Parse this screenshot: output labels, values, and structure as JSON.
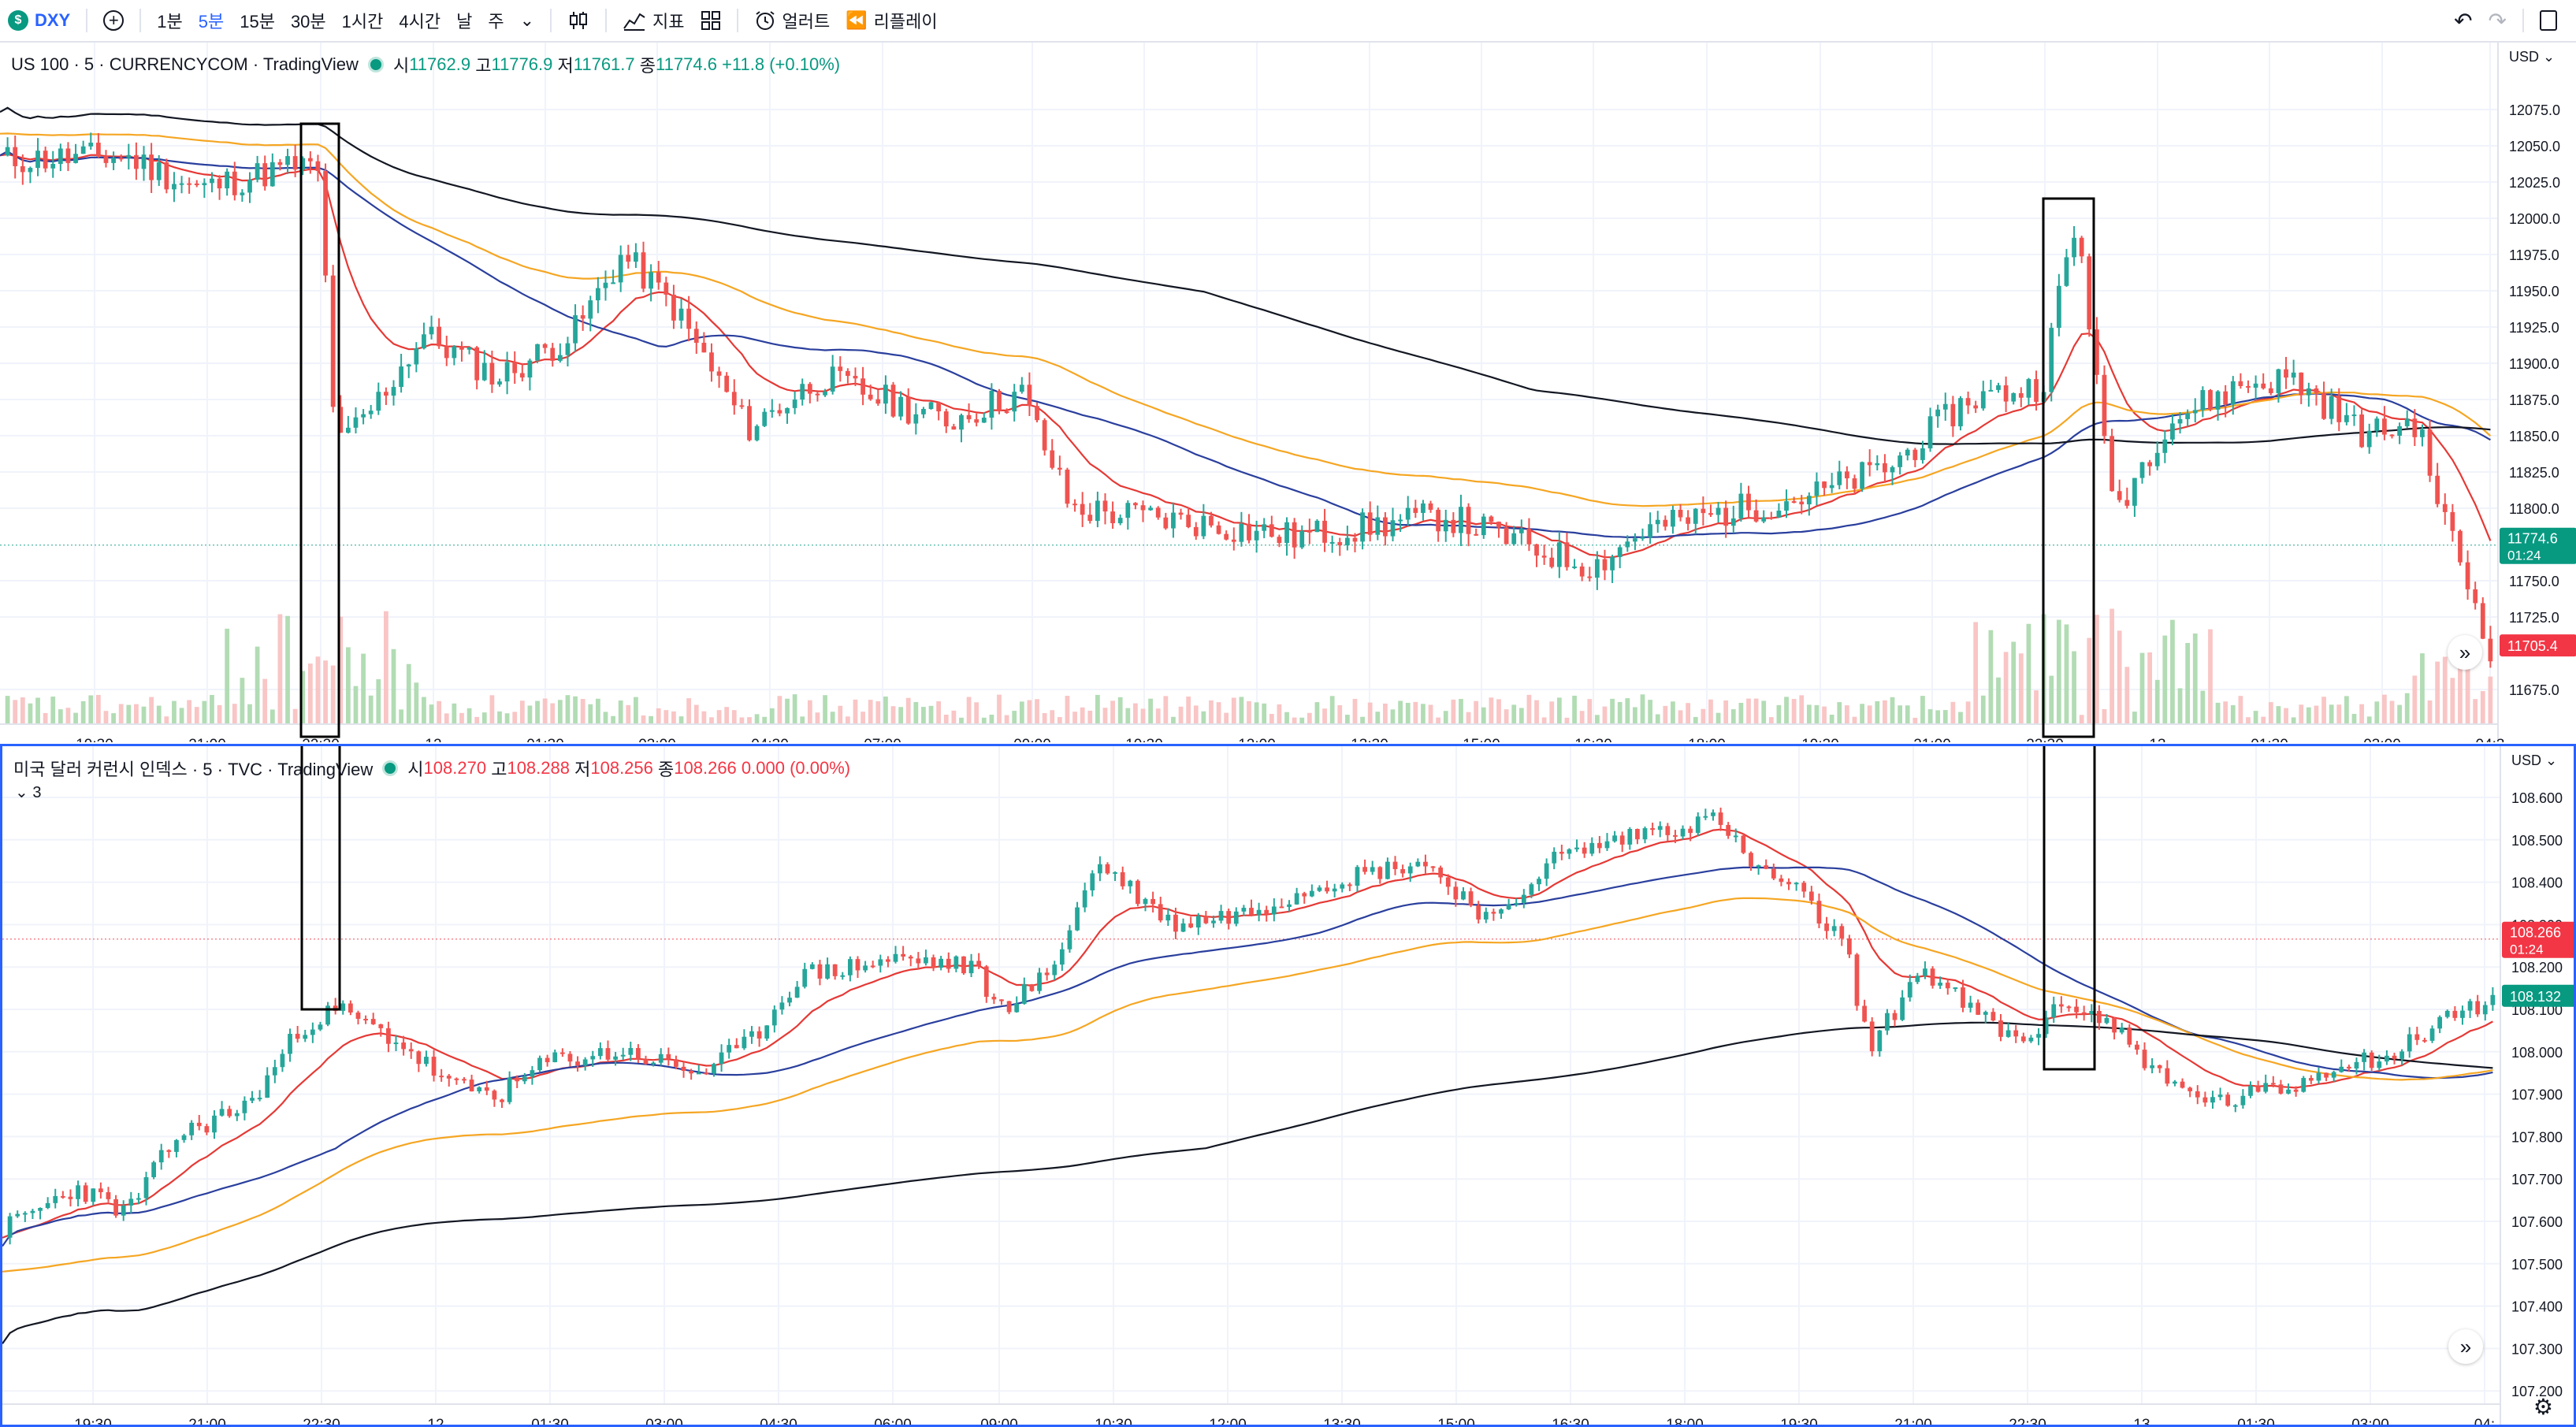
{
  "toolbar": {
    "symbol": "DXY",
    "symbol_badge": "$",
    "intervals": [
      "1분",
      "5분",
      "15분",
      "30분",
      "1시간",
      "4시간",
      "날",
      "주"
    ],
    "active_interval": "5분",
    "indicators_label": "지표",
    "alert_label": "얼러트",
    "replay_label": "리플레이"
  },
  "pane1": {
    "legend": {
      "title": "US 100 · 5 · CURRENCYCOM · TradingView",
      "o_label": "시",
      "o": "11762.9",
      "h_label": "고",
      "h": "11776.9",
      "l_label": "저",
      "l": "11761.7",
      "c_label": "종",
      "c": "11774.6",
      "chg": "+11.8 (+0.10%)"
    },
    "currency": "USD",
    "price_ticks": [
      "12075.0",
      "12050.0",
      "12025.0",
      "12000.0",
      "11975.0",
      "11950.0",
      "11925.0",
      "11900.0",
      "11875.0",
      "11850.0",
      "11825.0",
      "11800.0",
      "11750.0",
      "11725.0",
      "11675.0"
    ],
    "tick_values": [
      12075,
      12050,
      12025,
      12000,
      11975,
      11950,
      11925,
      11900,
      11875,
      11850,
      11825,
      11800,
      11750,
      11725,
      11675
    ],
    "price_badge": {
      "value": "11774.6",
      "countdown": "01:24",
      "color": "#089981"
    },
    "price_badge2": {
      "value": "11705.4",
      "color": "#f23645"
    },
    "time_labels": [
      "19:30",
      "21:00",
      "22:30",
      "12",
      "01:30",
      "03:00",
      "04:30",
      "07:00",
      "09:00",
      "10:30",
      "12:00",
      "13:30",
      "15:00",
      "16:30",
      "18:00",
      "19:30",
      "21:00",
      "22:30",
      "13",
      "01:30",
      "03:00",
      "04:3"
    ]
  },
  "pane2": {
    "legend": {
      "title": "미국 달러 커런시 인덱스 · 5 · TVC · TradingView",
      "o_label": "시",
      "o": "108.270",
      "h_label": "고",
      "h": "108.288",
      "l_label": "저",
      "l": "108.256",
      "c_label": "종",
      "c": "108.266",
      "chg": "0.000 (0.00%)"
    },
    "collapse_label": "3",
    "currency": "USD",
    "price_ticks": [
      "108.600",
      "108.500",
      "108.400",
      "108.300",
      "108.200",
      "108.100",
      "108.000",
      "107.900",
      "107.800",
      "107.700",
      "107.600",
      "107.500",
      "107.400",
      "107.300",
      "107.200"
    ],
    "tick_values": [
      108.6,
      108.5,
      108.4,
      108.3,
      108.2,
      108.1,
      108.0,
      107.9,
      107.8,
      107.7,
      107.6,
      107.5,
      107.4,
      107.3,
      107.2
    ],
    "price_badge": {
      "value": "108.266",
      "countdown": "01:24",
      "color": "#f23645"
    },
    "price_badge2": {
      "value": "108.132",
      "color": "#089981"
    },
    "time_labels": [
      "19:30",
      "21:00",
      "22:30",
      "12",
      "01:30",
      "03:00",
      "04:30",
      "06:00",
      "09:00",
      "10:30",
      "12:00",
      "13:30",
      "15:00",
      "16:30",
      "18:00",
      "19:30",
      "21:00",
      "22:30",
      "13",
      "01:30",
      "03:00",
      "04:"
    ]
  },
  "colors": {
    "up": "#26a69a",
    "down": "#ef5350",
    "ma_fast": "#e53935",
    "ma_mid": "#2a3f9d",
    "ma_slow": "#f5a623",
    "ma_long": "#131722",
    "highlight_box": "#000000",
    "pane_border": "#2962ff"
  }
}
